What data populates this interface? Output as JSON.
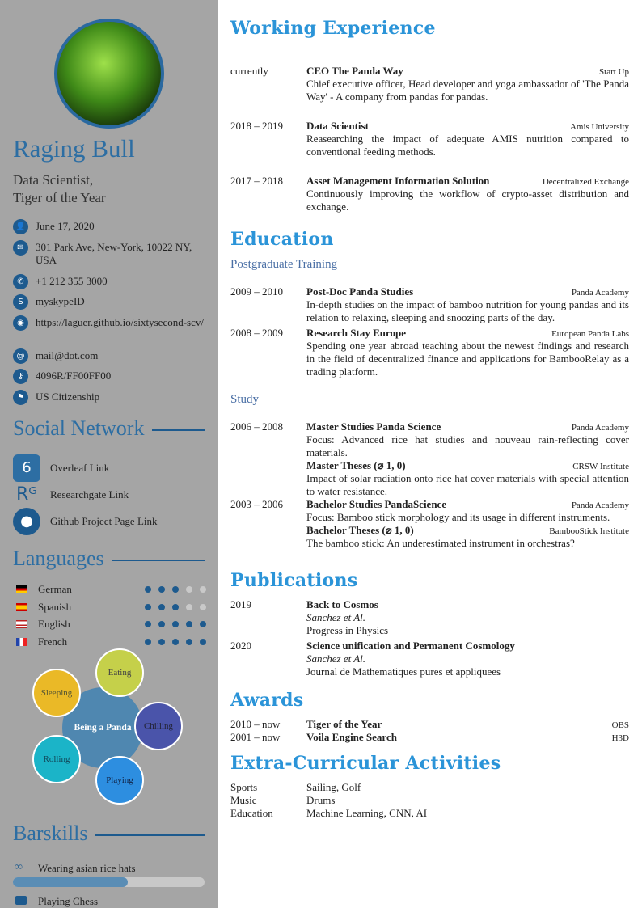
{
  "profile": {
    "name": "Raging Bull",
    "subtitle_line1": "Data Scientist,",
    "subtitle_line2": "Tiger of the Year"
  },
  "contact": [
    {
      "icon": "user-icon",
      "glyph": "👤",
      "text": "June 17, 2020"
    },
    {
      "icon": "envelope-icon",
      "glyph": "✉",
      "text": "301 Park Ave, New-York, 10022 NY, USA"
    },
    {
      "icon": "phone-icon",
      "glyph": "✆",
      "text": "+1 212 355 3000"
    },
    {
      "icon": "skype-icon",
      "glyph": "S",
      "text": "myskypeID"
    },
    {
      "icon": "globe-icon",
      "glyph": "◉",
      "text": "https://laguer.github.io/sixtysecond-scv/"
    },
    {
      "icon": "at-icon",
      "glyph": "@",
      "text": "mail@dot.com"
    },
    {
      "icon": "key-icon",
      "glyph": "⚷",
      "text": "4096R/FF00FF00"
    },
    {
      "icon": "flag-icon",
      "glyph": "⚑",
      "text": "US Citizenship"
    }
  ],
  "social": {
    "title": "Social Network",
    "items": [
      {
        "icon": "overleaf-icon",
        "glyph": "6",
        "label": "Overleaf Link"
      },
      {
        "icon": "researchgate-icon",
        "glyph": "Rᴳ",
        "label": "Researchgate Link"
      },
      {
        "icon": "github-icon",
        "glyph": "●",
        "label": "Github Project Page Link"
      }
    ]
  },
  "languages": {
    "title": "Languages",
    "items": [
      {
        "name": "German",
        "level": 3,
        "flag": "germany-flag-icon"
      },
      {
        "name": "Spanish",
        "level": 3,
        "flag": "spain-flag-icon"
      },
      {
        "name": "English",
        "level": 5,
        "flag": "usa-flag-icon"
      },
      {
        "name": "French",
        "level": 5,
        "flag": "france-flag-icon"
      }
    ],
    "max": 5
  },
  "bubbles": {
    "center": "Being a Panda",
    "items": [
      "Eating",
      "Sleeping",
      "Chilling",
      "Rolling",
      "Playing"
    ]
  },
  "barskills": {
    "title": "Barskills",
    "items": [
      {
        "icon": "rice-hat-icon",
        "label": "Wearing asian rice hats",
        "level": 0.6
      },
      {
        "icon": "image-icon",
        "label": "Playing Chess"
      }
    ]
  },
  "colors": {
    "sidebar": "#a5a5a5",
    "accent": "#2b94d8",
    "sidebar_accent": "#2d6ea3"
  },
  "experience": {
    "title": "Working Experience",
    "items": [
      {
        "date": "currently",
        "title": "CEO The Panda Way",
        "org": "Start Up",
        "desc": "Chief executive officer, Head developer and yoga ambassador of 'The Panda Way' - A company from pandas for pandas."
      },
      {
        "date": "2018 – 2019",
        "title": "Data Scientist",
        "org": "Amis University",
        "desc": "Reasearching the impact of adequate AMIS nutrition compared to conventional feeding methods."
      },
      {
        "date": "2017 – 2018",
        "title": "Asset Management Information Solution",
        "org": "Decentralized Exchange",
        "desc": "Continuously improving the workflow of crypto-asset distribution and exchange."
      }
    ]
  },
  "education": {
    "title": "Education",
    "postgrad": {
      "title": "Postgraduate Training",
      "items": [
        {
          "date": "2009 – 2010",
          "title": "Post-Doc Panda Studies",
          "org": "Panda Academy",
          "desc": "In-depth studies on the impact of bamboo nutrition for young pandas and its relation to relaxing, sleeping and snoozing parts of the day."
        },
        {
          "date": "2008 – 2009",
          "title": "Research Stay Europe",
          "org": "European Panda Labs",
          "desc": "Spending one year abroad teaching about the newest findings and research in the field of decentralized finance and applications for BambooRelay as a trading platform."
        }
      ]
    },
    "study": {
      "title": "Study",
      "items": [
        {
          "date": "2006 – 2008",
          "title": "Master Studies Panda Science",
          "org": "Panda Academy",
          "desc": "Focus: Advanced rice hat studies and nouveau rain-reflecting cover materials."
        },
        {
          "date": "",
          "title": "Master Theses (⌀ 1, 0)",
          "org": "CRSW Institute",
          "desc": "Impact of solar radiation onto rice hat cover materials with special attention to water resistance."
        },
        {
          "date": "2003 – 2006",
          "title": "Bachelor Studies PandaScience",
          "org": "Panda Academy",
          "desc": "Focus: Bamboo stick morphology and its usage in different instruments."
        },
        {
          "date": "",
          "title": "Bachelor Theses (⌀ 1, 0)",
          "org": "BambooStick Institute",
          "desc": "The bamboo stick: An underestimated instrument in orchestras?"
        }
      ]
    }
  },
  "publications": {
    "title": "Publications",
    "items": [
      {
        "date": "2019",
        "title": "Back to Cosmos",
        "authors": "Sanchez et Al.",
        "journal": "Progress in Physics"
      },
      {
        "date": "2020",
        "title": "Science unification and Permanent Cosmology",
        "authors": "Sanchez et Al.",
        "journal": "Journal de Mathematiques pures et appliquees"
      }
    ]
  },
  "awards": {
    "title": "Awards",
    "items": [
      {
        "date": "2010 – now",
        "title": "Tiger of the Year",
        "org": "OBS"
      },
      {
        "date": "2001 – now",
        "title": "Voila Engine Search",
        "org": "H3D"
      }
    ]
  },
  "activities": {
    "title": "Extra-Curricular Activities",
    "items": [
      {
        "label": "Sports",
        "value": "Sailing, Golf"
      },
      {
        "label": "Music",
        "value": "Drums"
      },
      {
        "label": "Education",
        "value": "Machine Learning, CNN, AI"
      }
    ]
  }
}
